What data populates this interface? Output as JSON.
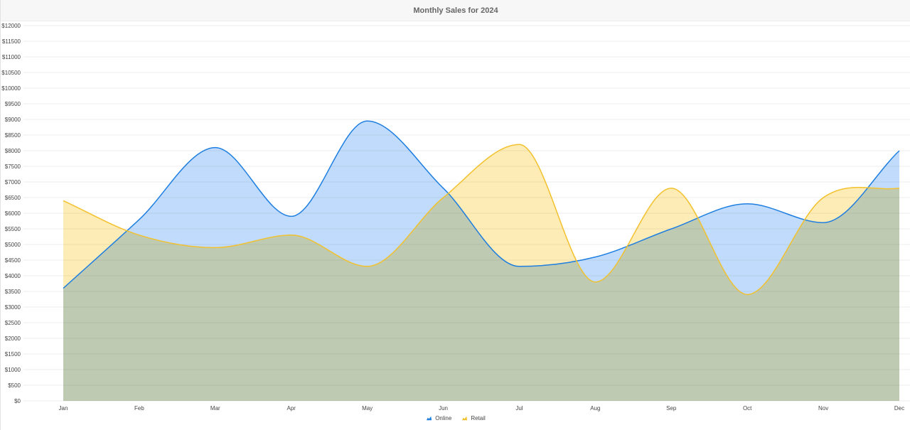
{
  "chart_data": {
    "type": "area",
    "title": "Monthly Sales for 2024",
    "xlabel": "",
    "ylabel": "",
    "categories": [
      "Jan",
      "Feb",
      "Mar",
      "Apr",
      "May",
      "Jun",
      "Jul",
      "Aug",
      "Sep",
      "Oct",
      "Nov",
      "Dec"
    ],
    "ylim": [
      0,
      12000
    ],
    "ytick_step": 500,
    "ytick_prefix": "$",
    "grid": true,
    "legend_position": "bottom-center",
    "smooth": true,
    "series": [
      {
        "name": "Online",
        "color": "#1e7fe0",
        "fill": "#a8cdfa",
        "values": [
          3600,
          5800,
          8100,
          5900,
          8950,
          6800,
          4300,
          4600,
          5500,
          6300,
          5700,
          8000
        ]
      },
      {
        "name": "Retail",
        "color": "#f2c12e",
        "fill": "#fde59a",
        "values": [
          6400,
          5300,
          4900,
          5300,
          4300,
          6500,
          8200,
          3800,
          6800,
          3400,
          6500,
          6800
        ]
      }
    ]
  }
}
